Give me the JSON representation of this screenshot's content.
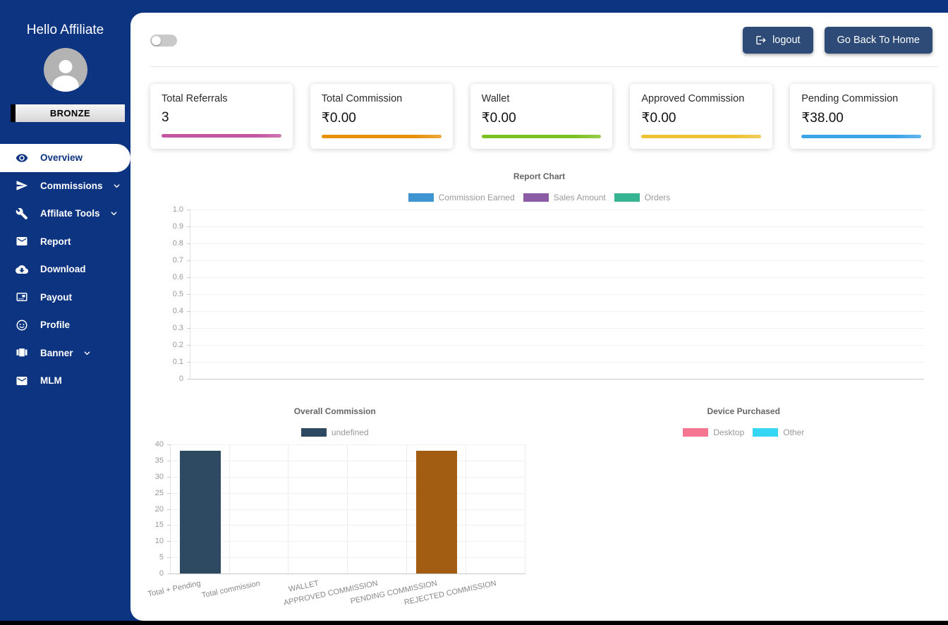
{
  "colors": {
    "sidebar_bg": "#0d3480",
    "panel_bg": "#ffffff",
    "button_bg": "#2d4b76",
    "bottom_strip": "#000000"
  },
  "sidebar": {
    "greeting": "Hello Affiliate",
    "badge": "BRONZE",
    "items": [
      {
        "label": "Overview",
        "icon": "eye",
        "active": true,
        "chevron": false
      },
      {
        "label": "Commissions",
        "icon": "send",
        "active": false,
        "chevron": true
      },
      {
        "label": "Affilate Tools",
        "icon": "wrench",
        "active": false,
        "chevron": true
      },
      {
        "label": "Report",
        "icon": "mail",
        "active": false,
        "chevron": false
      },
      {
        "label": "Download",
        "icon": "cloud-download",
        "active": false,
        "chevron": false
      },
      {
        "label": "Payout",
        "icon": "payout-card",
        "active": false,
        "chevron": false
      },
      {
        "label": "Profile",
        "icon": "face",
        "active": false,
        "chevron": false
      },
      {
        "label": "Banner",
        "icon": "carousel",
        "active": false,
        "chevron": true
      },
      {
        "label": "MLM",
        "icon": "mail",
        "active": false,
        "chevron": false
      }
    ]
  },
  "header": {
    "logout_label": "logout",
    "home_label": "Go Back To Home",
    "toggle_state": "off"
  },
  "stats": [
    {
      "title": "Total Referrals",
      "value": "3",
      "bar_color": "#c2559f"
    },
    {
      "title": "Total Commission",
      "value": "₹0.00",
      "bar_color": "#e8920c"
    },
    {
      "title": "Wallet",
      "value": "₹0.00",
      "bar_color": "#7cc122"
    },
    {
      "title": "Approved Commission",
      "value": "₹0.00",
      "bar_color": "#edc233"
    },
    {
      "title": "Pending Commission",
      "value": "₹38.00",
      "bar_color": "#3ba4e8"
    }
  ],
  "chart_data": [
    {
      "type": "line",
      "title": "Report Chart",
      "series": [
        {
          "name": "Commission Earned",
          "color": "#3e95d2",
          "values": []
        },
        {
          "name": "Sales Amount",
          "color": "#8b5ba5",
          "values": []
        },
        {
          "name": "Orders",
          "color": "#37b593",
          "values": []
        }
      ],
      "x": [],
      "ylim": [
        0,
        1.0
      ],
      "yticks": [
        "1.0",
        "0.9",
        "0.8",
        "0.7",
        "0.6",
        "0.5",
        "0.4",
        "0.3",
        "0.2",
        "0.1",
        "0"
      ],
      "grid": true,
      "legend_position": "top",
      "empty": true
    },
    {
      "type": "bar",
      "title": "Overall Commission",
      "legend_label": "undefined",
      "legend_color": "#2e4a63",
      "categories": [
        "Total + Pending",
        "Total commission",
        "WALLET",
        "APPROVED COMMISSION",
        "PENDING COMMISSION",
        "REJECTED COMMISSION"
      ],
      "values": [
        38,
        0,
        0,
        0,
        38,
        0
      ],
      "bar_colors": [
        "#2e4a63",
        "#2e4a63",
        "#2e4a63",
        "#2e4a63",
        "#a35d12",
        "#2e4a63"
      ],
      "ylim": [
        0,
        40
      ],
      "yticks": [
        40,
        35,
        30,
        25,
        20,
        15,
        10,
        5,
        0
      ],
      "grid": true,
      "legend_position": "top"
    },
    {
      "type": "pie",
      "title": "Device Purchased",
      "legend": [
        {
          "label": "Desktop",
          "color": "#f47691"
        },
        {
          "label": "Other",
          "color": "#35d6f4"
        }
      ],
      "values": [],
      "legend_position": "top",
      "empty": true
    }
  ]
}
